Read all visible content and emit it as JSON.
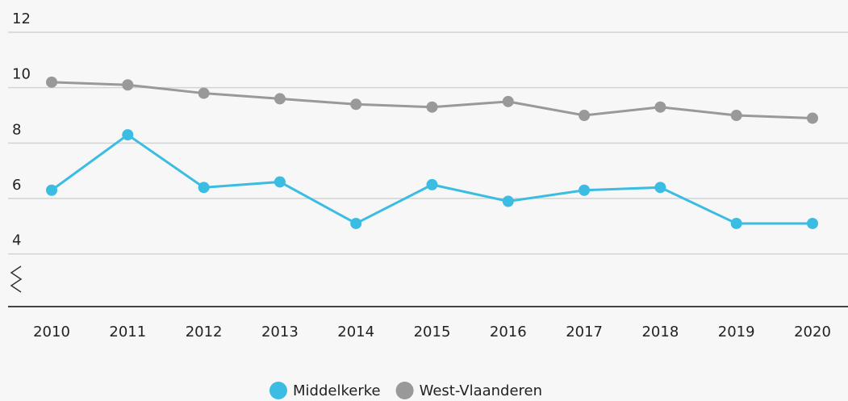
{
  "chart_data": {
    "type": "line",
    "categories": [
      "2010",
      "2011",
      "2012",
      "2013",
      "2014",
      "2015",
      "2016",
      "2017",
      "2018",
      "2019",
      "2020"
    ],
    "series": [
      {
        "name": "Middelkerke",
        "color": "#3bbde3",
        "values": [
          6.3,
          8.3,
          6.4,
          6.6,
          5.1,
          6.5,
          5.9,
          6.3,
          6.4,
          5.1,
          5.1
        ]
      },
      {
        "name": "West-Vlaanderen",
        "color": "#999999",
        "values": [
          10.2,
          10.1,
          9.8,
          9.6,
          9.4,
          9.3,
          9.5,
          9.0,
          9.3,
          9.0,
          8.9
        ]
      }
    ],
    "ylim": [
      2.1,
      12
    ],
    "yticks": [
      4,
      6,
      8,
      10,
      12
    ],
    "grid": true,
    "legend": "bottom"
  }
}
